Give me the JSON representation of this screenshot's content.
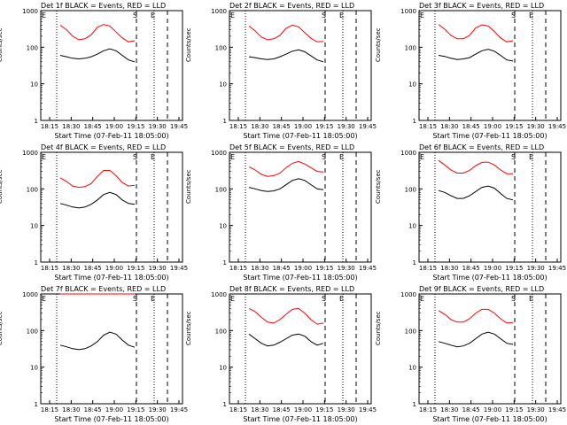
{
  "colors": {
    "events": "#000000",
    "lld": "#ff0000",
    "axis": "#000000",
    "bg": "#ffffff"
  },
  "axes": {
    "xlabel": "Start Time (07-Feb-11 18:05:00)",
    "ylabel": "Counts/sec",
    "x_ticks": [
      "18:15",
      "18:30",
      "18:45",
      "19:00",
      "19:15",
      "19:30",
      "19:45"
    ],
    "y_ticks": [
      "1",
      "10",
      "100",
      "1000"
    ],
    "ylim": [
      1,
      1000
    ],
    "yscale": "log",
    "markers": {
      "S": "S",
      "E": "E"
    }
  },
  "chart_data": [
    {
      "type": "line",
      "title": "Det 1f BLACK = Events, RED = LLD",
      "series": [
        {
          "name": "Events",
          "values": [
            60,
            55,
            50,
            48,
            50,
            55,
            65,
            80,
            90,
            80,
            60,
            45,
            40
          ]
        },
        {
          "name": "LLD",
          "values": [
            400,
            300,
            200,
            160,
            170,
            220,
            350,
            420,
            380,
            260,
            180,
            140,
            150
          ]
        }
      ]
    },
    {
      "type": "line",
      "title": "Det 2f BLACK = Events, RED = LLD",
      "series": [
        {
          "name": "Events",
          "values": [
            55,
            52,
            48,
            46,
            48,
            55,
            65,
            78,
            85,
            75,
            58,
            45,
            40
          ]
        },
        {
          "name": "LLD",
          "values": [
            380,
            280,
            190,
            160,
            170,
            210,
            330,
            400,
            360,
            250,
            175,
            140,
            145
          ]
        }
      ]
    },
    {
      "type": "line",
      "title": "Det 3f BLACK = Events, RED = LLD",
      "series": [
        {
          "name": "Events",
          "values": [
            60,
            56,
            50,
            46,
            48,
            52,
            65,
            80,
            88,
            78,
            60,
            45,
            42
          ]
        },
        {
          "name": "LLD",
          "values": [
            420,
            310,
            210,
            170,
            170,
            210,
            340,
            410,
            380,
            270,
            180,
            140,
            150
          ]
        }
      ]
    },
    {
      "type": "line",
      "title": "Det 4f BLACK = Events, RED = LLD",
      "series": [
        {
          "name": "Events",
          "values": [
            40,
            36,
            32,
            30,
            32,
            38,
            50,
            70,
            80,
            70,
            50,
            40,
            38
          ]
        },
        {
          "name": "LLD",
          "values": [
            200,
            160,
            120,
            110,
            115,
            140,
            220,
            320,
            320,
            230,
            150,
            120,
            125
          ]
        }
      ]
    },
    {
      "type": "line",
      "title": "Det 5f BLACK = Events, RED = LLD",
      "series": [
        {
          "name": "Events",
          "values": [
            110,
            100,
            90,
            85,
            88,
            100,
            130,
            170,
            190,
            170,
            130,
            100,
            95
          ]
        },
        {
          "name": "LLD",
          "values": [
            400,
            330,
            250,
            220,
            230,
            270,
            380,
            500,
            560,
            480,
            380,
            300,
            290
          ]
        }
      ]
    },
    {
      "type": "line",
      "title": "Det 6f BLACK = Events, RED = LLD",
      "series": [
        {
          "name": "Events",
          "values": [
            90,
            80,
            65,
            55,
            55,
            65,
            85,
            110,
            120,
            105,
            75,
            55,
            50
          ]
        },
        {
          "name": "LLD",
          "values": [
            600,
            450,
            330,
            270,
            270,
            320,
            430,
            530,
            540,
            450,
            330,
            260,
            260
          ]
        }
      ]
    },
    {
      "type": "line",
      "title": "Det 7f BLACK = Events, RED = LLD",
      "series": [
        {
          "name": "Events",
          "values": [
            40,
            36,
            32,
            30,
            32,
            38,
            50,
            75,
            90,
            80,
            55,
            40,
            35
          ]
        },
        {
          "name": "LLD",
          "values": [
            1000,
            1000,
            1000,
            1000,
            1000,
            1000,
            1000,
            1000,
            1000,
            1000,
            1000,
            1000,
            1000
          ]
        }
      ]
    },
    {
      "type": "line",
      "title": "Det 8f BLACK = Events, RED = LLD",
      "series": [
        {
          "name": "Events",
          "values": [
            80,
            60,
            45,
            38,
            40,
            48,
            60,
            75,
            80,
            70,
            50,
            40,
            45
          ]
        },
        {
          "name": "LLD",
          "values": [
            400,
            330,
            230,
            170,
            160,
            200,
            280,
            380,
            400,
            300,
            200,
            150,
            160
          ]
        }
      ]
    },
    {
      "type": "line",
      "title": "Det 9f BLACK = Events, RED = LLD",
      "series": [
        {
          "name": "Events",
          "values": [
            50,
            45,
            40,
            36,
            38,
            45,
            60,
            80,
            90,
            80,
            60,
            45,
            42
          ]
        },
        {
          "name": "LLD",
          "values": [
            350,
            280,
            200,
            170,
            170,
            210,
            300,
            380,
            380,
            300,
            210,
            160,
            165
          ]
        }
      ]
    }
  ]
}
